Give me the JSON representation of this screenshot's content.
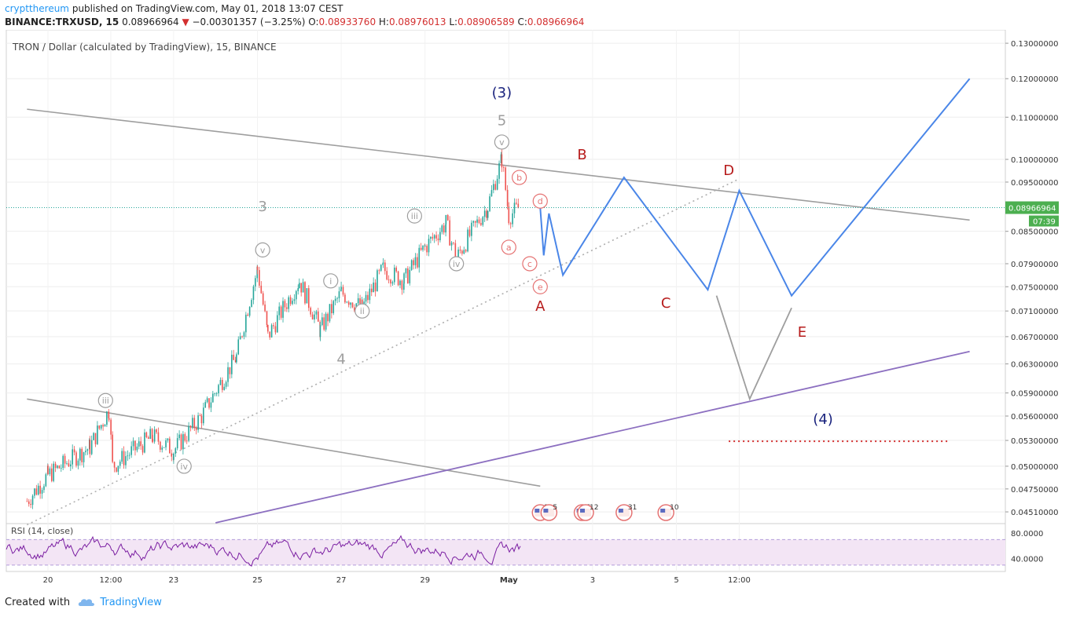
{
  "header": {
    "author": "cryptthereum",
    "published_text": "published on TradingView.com, May 01, 2018 13:07 CEST",
    "symbol": "BINANCE:TRXUSD, 15",
    "last": "0.08966964",
    "change_arrow": "▼",
    "change": "−0.00301357 (−3.25%)",
    "o_label": "O:",
    "o_value": "0.08933760",
    "h_label": "H:",
    "h_value": "0.08976013",
    "l_label": "L:",
    "l_value": "0.08906589",
    "c_label": "C:",
    "c_value": "0.08966964"
  },
  "footer": {
    "created_with": "Created with",
    "brand": "TradingView"
  },
  "colors": {
    "candle_up": "#26a69a",
    "candle_down": "#ef5350",
    "wave_blue": "#4a86e8",
    "wave_gray": "#9e9e9e",
    "trend_purple": "#8c6fc0",
    "label_red": "#b71c1c",
    "label_navy": "#1a237e",
    "roman_pink": "#e57373",
    "rsi_line": "#7b1fa2",
    "rsi_band": "#f3e5f5",
    "price_badge": "#4caf50",
    "target_dots": "#d32f2f"
  },
  "chart_data": {
    "type": "candlestick",
    "title": "TRON / Dollar (calculated by TradingView), 15, BINANCE",
    "timeframe": "15",
    "y_scale": "log",
    "ylim": [
      0.044,
      0.134
    ],
    "y_ticks": [
      "0.13000000",
      "0.12000000",
      "0.11000000",
      "0.10000000",
      "0.09500000",
      "0.08500000",
      "0.07900000",
      "0.07500000",
      "0.07100000",
      "0.06700000",
      "0.06300000",
      "0.05900000",
      "0.05600000",
      "0.05300000",
      "0.05000000",
      "0.04750000",
      "0.04510000"
    ],
    "x_ticks": [
      "20",
      "12:00",
      "23",
      "25",
      "27",
      "29",
      "May",
      "3",
      "5",
      "12:00"
    ],
    "current_price": "0.08966964",
    "countdown": "07:39",
    "grid": true,
    "price_path": [
      {
        "t": "19 12:00",
        "v": 0.0462
      },
      {
        "t": "20 00:00",
        "v": 0.049
      },
      {
        "t": "21 00:00",
        "v": 0.0522
      },
      {
        "t": "21 11:00",
        "v": 0.0568
      },
      {
        "t": "21 13:00",
        "v": 0.05
      },
      {
        "t": "22 12:00",
        "v": 0.0535
      },
      {
        "t": "23 00:00",
        "v": 0.0518
      },
      {
        "t": "23 16:00",
        "v": 0.056
      },
      {
        "t": "24 12:00",
        "v": 0.064
      },
      {
        "t": "25 00:00",
        "v": 0.078
      },
      {
        "t": "25 06:00",
        "v": 0.067
      },
      {
        "t": "26 00:00",
        "v": 0.076
      },
      {
        "t": "26 12:00",
        "v": 0.068
      },
      {
        "t": "27 00:00",
        "v": 0.074
      },
      {
        "t": "27 12:00",
        "v": 0.0715
      },
      {
        "t": "28 00:00",
        "v": 0.078
      },
      {
        "t": "28 12:00",
        "v": 0.076
      },
      {
        "t": "29 00:00",
        "v": 0.082
      },
      {
        "t": "29 12:00",
        "v": 0.0865
      },
      {
        "t": "29 18:00",
        "v": 0.08
      },
      {
        "t": "30 12:00",
        "v": 0.09
      },
      {
        "t": "30 20:00",
        "v": 0.1
      },
      {
        "t": "May 00:00",
        "v": 0.088
      },
      {
        "t": "May 06:00",
        "v": 0.0897
      }
    ],
    "wave_labels": [
      {
        "text": "(3)",
        "t": "30 20:00",
        "v": 0.115
      },
      {
        "text": "5",
        "t": "30 20:00",
        "v": 0.108
      },
      {
        "text": "3",
        "t": "25 03:00",
        "v": 0.089
      },
      {
        "text": "4",
        "t": "27 00:00",
        "v": 0.063
      },
      {
        "text": "A",
        "t": "May 18:00",
        "v": 0.071
      },
      {
        "text": "B",
        "t": "2 18:00",
        "v": 0.1
      },
      {
        "text": "C",
        "t": "4 18:00",
        "v": 0.0715
      },
      {
        "text": "D",
        "t": "6 06:00",
        "v": 0.0965
      },
      {
        "text": "E",
        "t": "8 00:00",
        "v": 0.067
      },
      {
        "text": "(4)",
        "t": "8 12:00",
        "v": 0.055
      }
    ],
    "roman_labels": [
      {
        "text": "iii",
        "t": "21 09:00",
        "v": 0.058
      },
      {
        "text": "iv",
        "t": "23 06:00",
        "v": 0.05
      },
      {
        "text": "v",
        "t": "25 03:00",
        "v": 0.0815
      },
      {
        "text": "i",
        "t": "26 18:00",
        "v": 0.076
      },
      {
        "text": "ii",
        "t": "27 12:00",
        "v": 0.071
      },
      {
        "text": "iii",
        "t": "28 18:00",
        "v": 0.088
      },
      {
        "text": "iv",
        "t": "29 18:00",
        "v": 0.079
      },
      {
        "text": "v",
        "t": "30 20:00",
        "v": 0.104
      }
    ],
    "abc_labels": [
      {
        "text": "b",
        "t": "May 06:00",
        "v": 0.096
      },
      {
        "text": "d",
        "t": "May 18:00",
        "v": 0.091
      },
      {
        "text": "a",
        "t": "May 00:00",
        "v": 0.082
      },
      {
        "text": "c",
        "t": "May 12:00",
        "v": 0.079
      },
      {
        "text": "e",
        "t": "May 18:00",
        "v": 0.075
      }
    ],
    "indicator": {
      "name": "RSI (14, close)",
      "ylim": [
        20,
        95
      ],
      "y_ticks": [
        "80.0000",
        "40.0000"
      ],
      "band": [
        30,
        70
      ]
    },
    "events": [
      "2",
      "5",
      "5",
      "12",
      "31",
      "10"
    ]
  }
}
